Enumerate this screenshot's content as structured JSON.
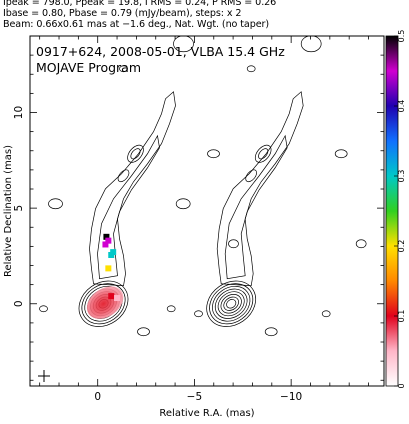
{
  "header": {
    "line1": "Ipeak = 798.0, Ppeak = 19.8, I RMS = 0.24, P RMS = 0.26",
    "line2": "Ibase = 0.80, Pbase = 0.79 (mJy/beam), steps: x 2",
    "line3": "Beam: 0.66x0.61 mas at −1.6 deg., Nat. Wgt. (no taper)"
  },
  "chart_data": {
    "type": "contour",
    "title": "0917+624, 2008-05-01, VLBA 15.4 GHz",
    "subtitle": "MOJAVE Program",
    "xlabel": "Relative R.A. (mas)",
    "ylabel": "Relative Declination (mas)",
    "xlim": [
      3.5,
      -14.8
    ],
    "ylim": [
      -4.3,
      14.0
    ],
    "x_ticks": [
      {
        "value": 0,
        "label": "0"
      },
      {
        "value": -5,
        "label": "−5"
      },
      {
        "value": -10,
        "label": "−10"
      }
    ],
    "y_ticks": [
      {
        "value": 0,
        "label": "0"
      },
      {
        "value": 5,
        "label": "5"
      },
      {
        "value": 10,
        "label": "10"
      }
    ],
    "colorbar": {
      "min": 0,
      "max": 0.5,
      "ticks": [
        {
          "value": 0,
          "label": "0"
        },
        {
          "value": 0.1,
          "label": "0.1"
        },
        {
          "value": 0.2,
          "label": "0.2"
        },
        {
          "value": 0.3,
          "label": "0.3"
        },
        {
          "value": 0.4,
          "label": "0.4"
        },
        {
          "value": 0.5,
          "label": "0.5"
        }
      ],
      "colors": [
        "#ffffff",
        "#ffb6c8",
        "#e0001c",
        "#ff8800",
        "#ffe000",
        "#30d020",
        "#00c8c8",
        "#1070ff",
        "#2000b0",
        "#d000d0",
        "#000000"
      ]
    },
    "panels": [
      {
        "name": "",
        "x_offset": 0
      },
      {
        "name": "",
        "x_offset": -6.6
      }
    ],
    "core": {
      "x": -0.3,
      "y": 0.0
    },
    "polarization_points": [
      {
        "x": -0.45,
        "y": 3.5,
        "value": 0.49
      },
      {
        "x": -0.55,
        "y": 3.3,
        "value": 0.47
      },
      {
        "x": -0.4,
        "y": 3.1,
        "value": 0.45
      },
      {
        "x": -0.7,
        "y": 2.55,
        "value": 0.29
      },
      {
        "x": -0.8,
        "y": 2.7,
        "value": 0.31
      },
      {
        "x": -0.55,
        "y": 1.85,
        "value": 0.22
      },
      {
        "x": -0.7,
        "y": 0.4,
        "value": 0.08
      },
      {
        "x": -1.0,
        "y": 0.3,
        "value": 0.06
      }
    ]
  }
}
